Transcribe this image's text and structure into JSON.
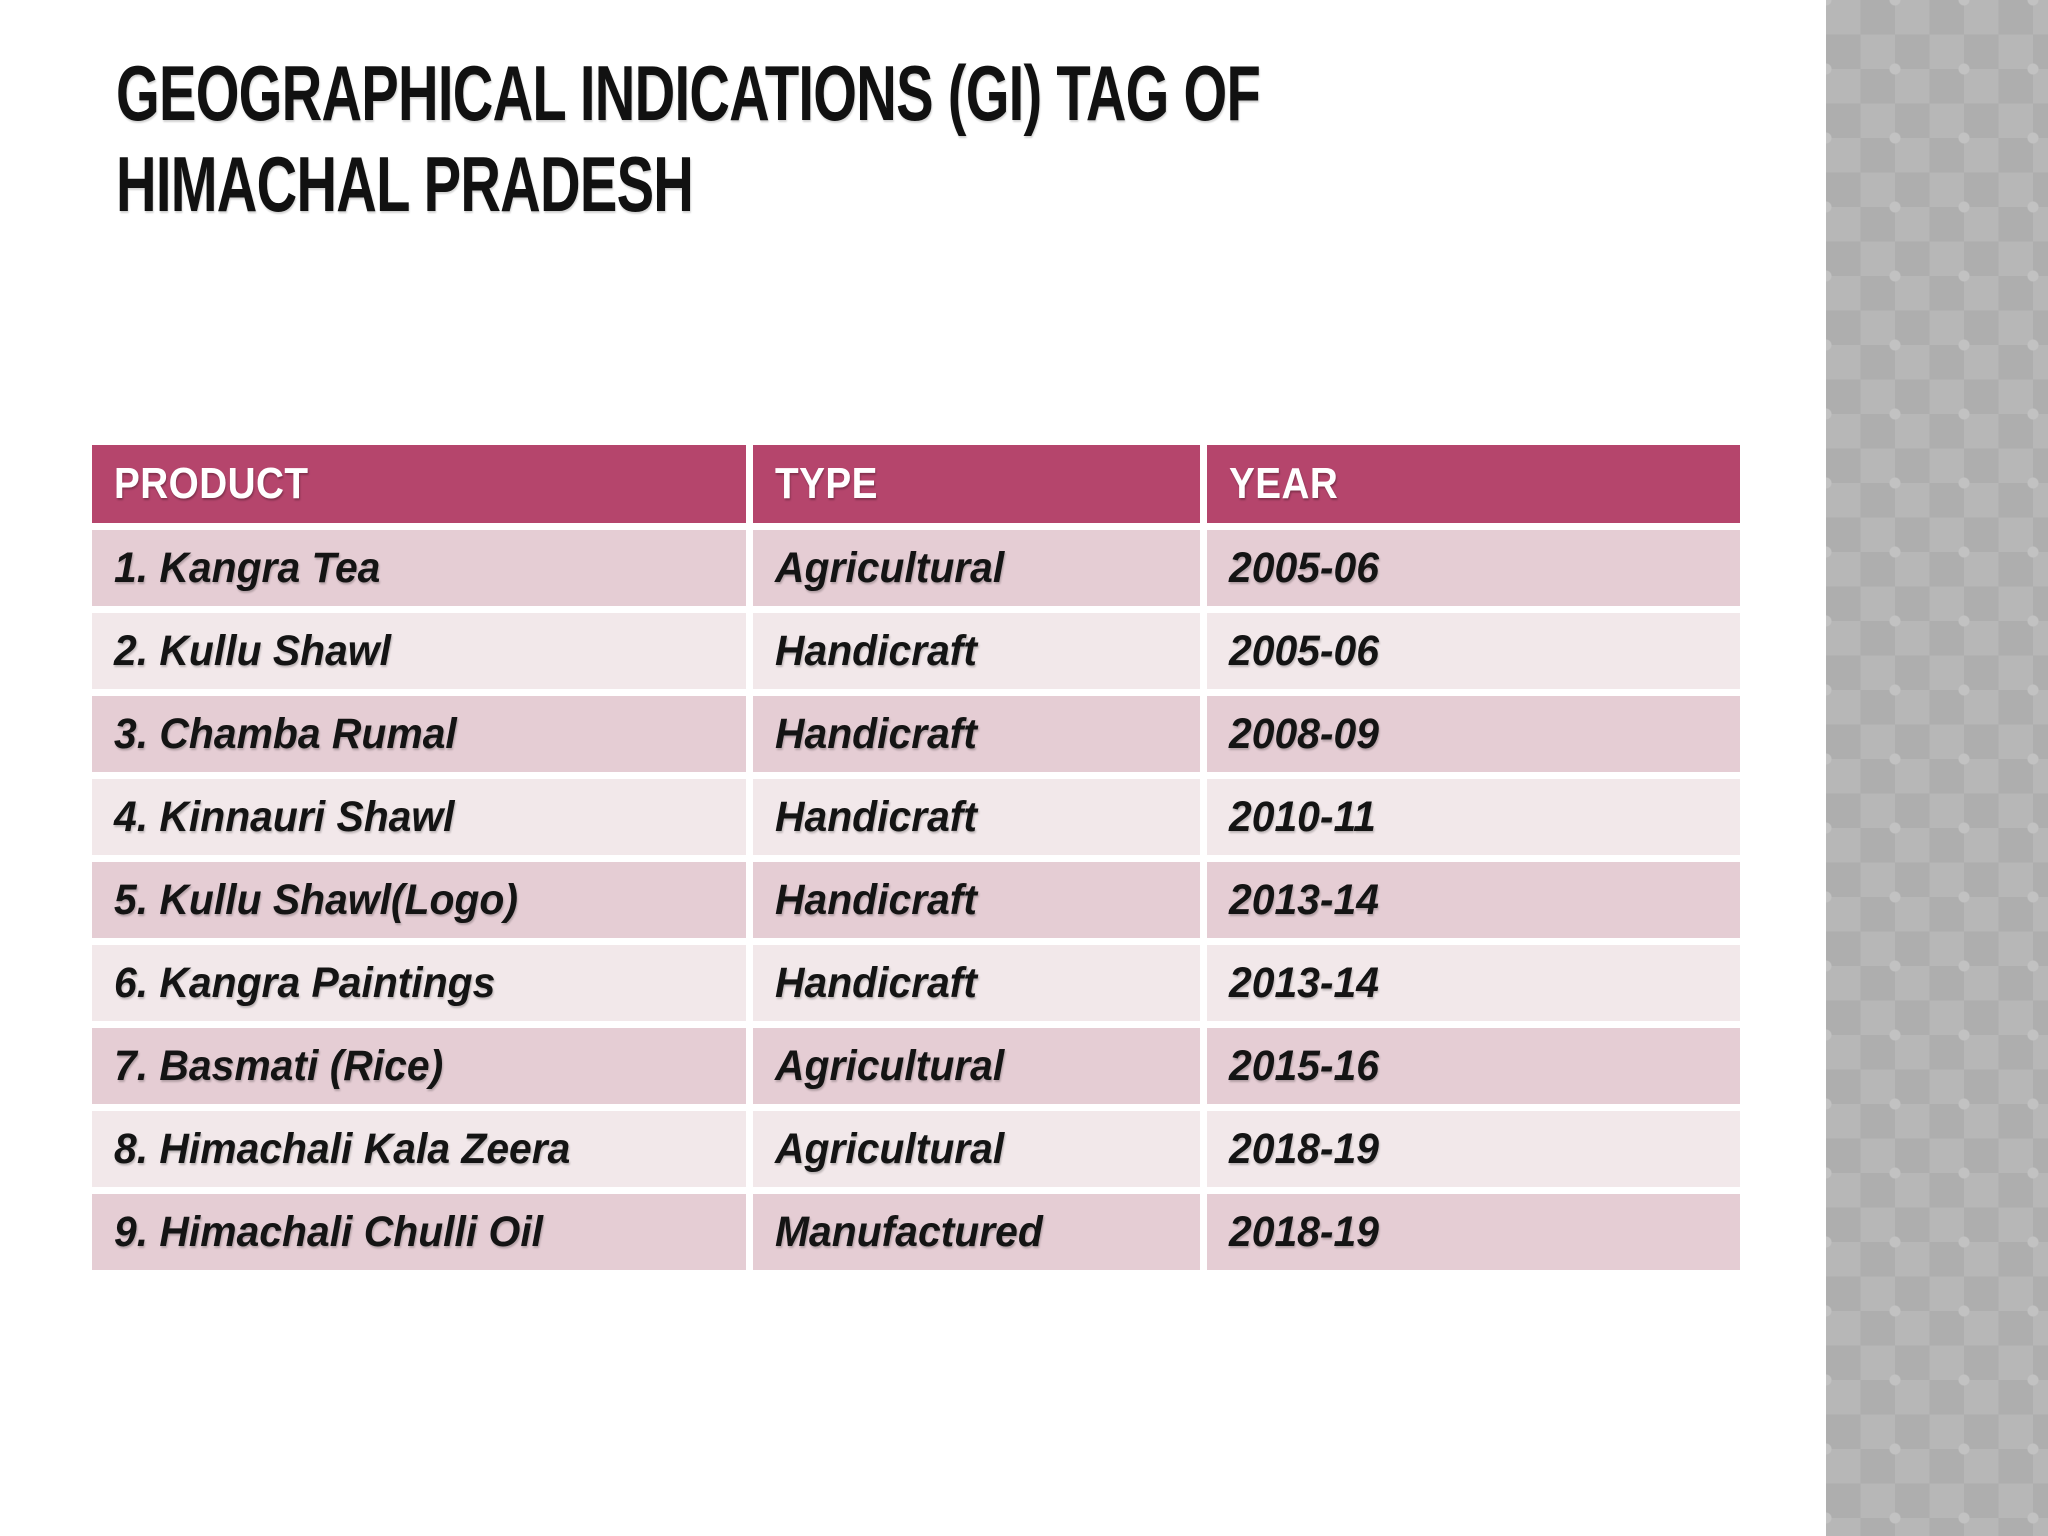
{
  "slide": {
    "title_lines": [
      "GEOGRAPHICAL INDICATIONS (GI) TAG OF",
      "HIMACHAL PRADESH"
    ]
  },
  "table": {
    "headers": [
      "PRODUCT",
      "TYPE",
      "YEAR"
    ],
    "rows": [
      {
        "product": "1. Kangra Tea",
        "type": "Agricultural",
        "year": "2005-06"
      },
      {
        "product": "2. Kullu Shawl",
        "type": "Handicraft",
        "year": "2005-06"
      },
      {
        "product": "3. Chamba Rumal",
        "type": "Handicraft",
        "year": "2008-09"
      },
      {
        "product": "4. Kinnauri Shawl",
        "type": "Handicraft",
        "year": "2010-11"
      },
      {
        "product": "5. Kullu Shawl(Logo)",
        "type": "Handicraft",
        "year": "2013-14"
      },
      {
        "product": "6. Kangra Paintings",
        "type": "Handicraft",
        "year": "2013-14"
      },
      {
        "product": "7. Basmati (Rice)",
        "type": "Agricultural",
        "year": "2015-16"
      },
      {
        "product": "8. Himachali Kala Zeera",
        "type": "Agricultural",
        "year": "2018-19"
      },
      {
        "product": "9. Himachali Chulli Oil",
        "type": "Manufactured",
        "year": "2018-19"
      }
    ]
  },
  "colors": {
    "slide-bg": "#ffffff",
    "title-text": "#111111",
    "header-bg": "#b5456c",
    "header-text": "#ffffff",
    "row-odd": "#e5cdd4",
    "row-even": "#f2e8ea",
    "body-text": "#141414",
    "sidebar-light": "#b7b7b7",
    "sidebar-dark": "#aeaeae",
    "sidebar-mark": "#c2c2c2"
  }
}
